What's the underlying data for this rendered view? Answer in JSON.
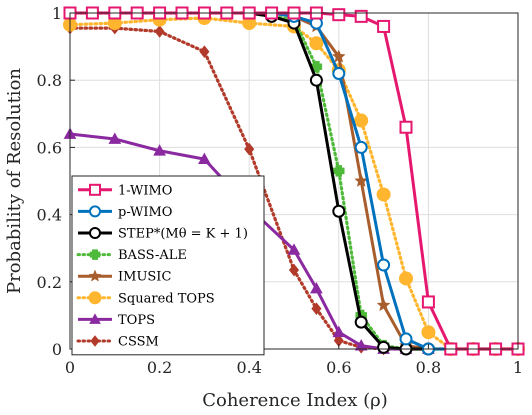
{
  "chart_data": {
    "type": "line",
    "xlabel": "Coherence Index (ρ)",
    "ylabel": "Probability of Resolution",
    "xlim": [
      0,
      1
    ],
    "ylim": [
      0,
      1
    ],
    "xticks": [
      "0",
      "0.2",
      "0.4",
      "0.6",
      "0.8",
      "1"
    ],
    "yticks": [
      "0",
      "0.2",
      "0.4",
      "0.6",
      "0.8",
      "1"
    ],
    "grid": true,
    "legend_position": "bottom-left",
    "series": [
      {
        "name": "1-WIMO",
        "color": "#e6176f",
        "marker": "square",
        "dash": "solid",
        "x": [
          0,
          0.05,
          0.1,
          0.15,
          0.2,
          0.25,
          0.3,
          0.35,
          0.4,
          0.45,
          0.5,
          0.55,
          0.6,
          0.65,
          0.7,
          0.75,
          0.8,
          0.85,
          0.9,
          0.95,
          1
        ],
        "y": [
          1,
          1,
          1,
          1,
          1,
          1,
          1,
          1,
          1,
          1,
          1,
          1,
          0.995,
          0.99,
          0.96,
          0.66,
          0.14,
          0,
          0,
          0,
          0
        ]
      },
      {
        "name": "p-WIMO",
        "color": "#0072bd",
        "marker": "circle",
        "dash": "solid",
        "x": [
          0,
          0.05,
          0.1,
          0.15,
          0.2,
          0.25,
          0.3,
          0.35,
          0.4,
          0.45,
          0.5,
          0.55,
          0.6,
          0.65,
          0.7,
          0.75,
          0.8,
          0.85,
          0.9,
          0.95,
          1
        ],
        "y": [
          1,
          1,
          1,
          1,
          1,
          1,
          1,
          1,
          1,
          1,
          0.99,
          0.97,
          0.82,
          0.6,
          0.25,
          0.03,
          0,
          0,
          0,
          0,
          0
        ]
      },
      {
        "name": "STEP*(Mθ = K + 1)",
        "color": "#000000",
        "marker": "circle",
        "dash": "solid",
        "x": [
          0,
          0.05,
          0.1,
          0.15,
          0.2,
          0.25,
          0.3,
          0.35,
          0.4,
          0.45,
          0.5,
          0.55,
          0.6,
          0.65,
          0.7,
          0.75,
          0.8,
          0.85,
          0.9,
          0.95,
          1
        ],
        "y": [
          1,
          1,
          1,
          1,
          1,
          1,
          1,
          1,
          1,
          0.99,
          0.97,
          0.8,
          0.41,
          0.08,
          0.005,
          0,
          0,
          0,
          0,
          0,
          0
        ]
      },
      {
        "name": "BASS-ALE",
        "color": "#4fba3a",
        "marker": "plus",
        "dash": "dotted",
        "x": [
          0,
          0.05,
          0.1,
          0.15,
          0.2,
          0.25,
          0.3,
          0.35,
          0.4,
          0.45,
          0.5,
          0.55,
          0.6,
          0.65,
          0.7,
          0.75,
          0.8,
          0.85,
          0.9,
          0.95,
          1
        ],
        "y": [
          1,
          1,
          1,
          1,
          1,
          1,
          1,
          1,
          1,
          0.99,
          0.98,
          0.84,
          0.53,
          0.1,
          0.01,
          0,
          0,
          0,
          0,
          0,
          0
        ]
      },
      {
        "name": "IMUSIC",
        "color": "#a85d2c",
        "marker": "star",
        "dash": "solid",
        "x": [
          0,
          0.05,
          0.1,
          0.15,
          0.2,
          0.25,
          0.3,
          0.35,
          0.4,
          0.45,
          0.5,
          0.55,
          0.6,
          0.65,
          0.7,
          0.75,
          0.8,
          0.85,
          0.9,
          0.95,
          1
        ],
        "y": [
          1,
          1,
          1,
          1,
          1,
          1,
          1,
          1,
          1,
          1,
          0.99,
          0.96,
          0.87,
          0.5,
          0.13,
          0.01,
          0,
          0,
          0,
          0,
          0
        ]
      },
      {
        "name": "Squared TOPS",
        "color": "#ffb52e",
        "marker": "circle-filled",
        "dash": "dotted",
        "x": [
          0,
          0.1,
          0.2,
          0.3,
          0.4,
          0.5,
          0.55,
          0.6,
          0.65,
          0.7,
          0.75,
          0.8,
          0.85,
          0.9,
          0.95,
          1
        ],
        "y": [
          0.965,
          0.97,
          0.98,
          0.985,
          0.97,
          0.96,
          0.91,
          0.83,
          0.68,
          0.46,
          0.21,
          0.05,
          0,
          0,
          0,
          0
        ]
      },
      {
        "name": "TOPS",
        "color": "#8b2aa0",
        "marker": "triangle",
        "dash": "solid",
        "x": [
          0,
          0.1,
          0.2,
          0.3,
          0.4,
          0.5,
          0.55,
          0.6,
          0.65,
          0.7,
          0.75,
          0.8,
          0.85,
          0.9,
          0.95,
          1
        ],
        "y": [
          0.64,
          0.625,
          0.59,
          0.565,
          0.42,
          0.295,
          0.18,
          0.05,
          0.01,
          0,
          0,
          0,
          0,
          0,
          0,
          0
        ]
      },
      {
        "name": "CSSM",
        "color": "#b23a2a",
        "marker": "diamond",
        "dash": "dotted",
        "x": [
          0,
          0.1,
          0.2,
          0.3,
          0.4,
          0.5,
          0.55,
          0.6,
          0.65,
          0.7,
          0.75,
          0.8,
          0.85,
          0.9,
          0.95,
          1
        ],
        "y": [
          0.955,
          0.955,
          0.945,
          0.885,
          0.595,
          0.235,
          0.12,
          0.025,
          0.005,
          0,
          0,
          0,
          0,
          0,
          0,
          0
        ]
      }
    ]
  }
}
